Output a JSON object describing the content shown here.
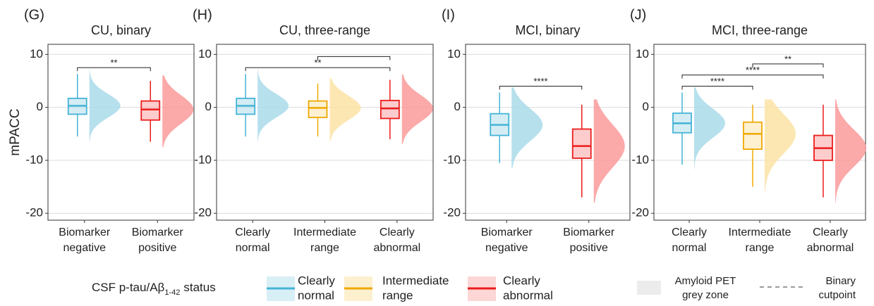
{
  "chart_data": [
    {
      "type": "box",
      "letter": "(G)",
      "title": "CU, binary",
      "y_label": "mPACC",
      "categories": [
        [
          "Biomarker",
          "negative"
        ],
        [
          "Biomarker",
          "positive"
        ]
      ],
      "colors": [
        "#45b4d6",
        "#ec1c1c"
      ],
      "fills": [
        "#aadbea",
        "#fb9a9a"
      ],
      "q1": [
        -1.3,
        -2.4
      ],
      "median": [
        0.3,
        -0.4
      ],
      "q3": [
        1.7,
        1.2
      ],
      "whisker_low": [
        -5.5,
        -6.5
      ],
      "whisker_high": [
        6.3,
        5.0
      ],
      "comparisons": [
        {
          "pair": [
            0,
            1
          ],
          "label": "**"
        }
      ],
      "ylim": [
        -21.3,
        11.9
      ],
      "yticks": [
        -20,
        -10,
        0,
        10
      ],
      "grid": true
    },
    {
      "type": "box",
      "letter": "(H)",
      "title": "CU, three-range",
      "categories": [
        [
          "Clearly",
          "normal"
        ],
        [
          "Intermediate",
          "range"
        ],
        [
          "Clearly",
          "abnormal"
        ]
      ],
      "colors": [
        "#45b4d6",
        "#f0a800",
        "#ec1c1c"
      ],
      "fills": [
        "#aadbea",
        "#fbe3a6",
        "#fb9a9a"
      ],
      "q1": [
        -1.3,
        -1.9,
        -2.1
      ],
      "median": [
        0.3,
        -0.1,
        -0.2
      ],
      "q3": [
        1.7,
        1.2,
        1.3
      ],
      "whisker_low": [
        -5.5,
        -5.5,
        -6.0
      ],
      "whisker_high": [
        6.3,
        4.5,
        5.2
      ],
      "comparisons": [
        {
          "pair": [
            0,
            2
          ],
          "label": "**"
        },
        {
          "pair": [
            1,
            2
          ]
        }
      ],
      "ylim": [
        -21.3,
        11.9
      ],
      "yticks": [
        -20,
        -10,
        0,
        10
      ],
      "grid": true
    },
    {
      "type": "box",
      "letter": "(I)",
      "title": "MCI, binary",
      "categories": [
        [
          "Biomarker",
          "negative"
        ],
        [
          "Biomarker",
          "positive"
        ]
      ],
      "colors": [
        "#45b4d6",
        "#ec1c1c"
      ],
      "fills": [
        "#aadbea",
        "#fb9a9a"
      ],
      "q1": [
        -5.3,
        -9.6
      ],
      "median": [
        -3.3,
        -7.3
      ],
      "q3": [
        -1.2,
        -4.1
      ],
      "whisker_low": [
        -10.5,
        -17.0
      ],
      "whisker_high": [
        2.8,
        0.5
      ],
      "comparisons": [
        {
          "pair": [
            0,
            1
          ],
          "label": "****"
        }
      ],
      "ylim": [
        -21.3,
        11.9
      ],
      "yticks": [
        -20,
        -10,
        0,
        10
      ],
      "grid": true
    },
    {
      "type": "box",
      "letter": "(J)",
      "title": "MCI, three-range",
      "categories": [
        [
          "Clearly",
          "normal"
        ],
        [
          "Intermediate",
          "range"
        ],
        [
          "Clearly",
          "abnormal"
        ]
      ],
      "colors": [
        "#45b4d6",
        "#f0a800",
        "#ec1c1c"
      ],
      "fills": [
        "#aadbea",
        "#fbe3a6",
        "#fb9a9a"
      ],
      "q1": [
        -4.8,
        -7.9,
        -10.0
      ],
      "median": [
        -3.0,
        -5.0,
        -7.7
      ],
      "q3": [
        -1.1,
        -2.8,
        -5.3
      ],
      "whisker_low": [
        -10.8,
        -15.0,
        -17.0
      ],
      "whisker_high": [
        2.8,
        0.5,
        0.5
      ],
      "comparisons": [
        {
          "pair": [
            0,
            1
          ],
          "label": "****"
        },
        {
          "pair": [
            0,
            2
          ],
          "label": "****"
        },
        {
          "pair": [
            1,
            2
          ],
          "label": "**"
        }
      ],
      "ylim": [
        -21.3,
        11.9
      ],
      "yticks": [
        -20,
        -10,
        0,
        10
      ],
      "grid": true
    }
  ],
  "legend": {
    "title": "CSF p-tau/Aβ",
    "title_subscript": "1-42",
    "title_suffix": "status",
    "items": [
      {
        "label": [
          "Clearly",
          "normal"
        ],
        "color": "#45b4d6",
        "fill": "#d9eff6"
      },
      {
        "label": [
          "Intermediate",
          "range"
        ],
        "color": "#f0a800",
        "fill": "#fdf0cf"
      },
      {
        "label": [
          "Clearly",
          "abnormal"
        ],
        "color": "#ec1c1c",
        "fill": "#fdd6d6"
      }
    ],
    "grey_zone": [
      "Amyloid PET",
      "grey zone"
    ],
    "cutpoint": [
      "Binary",
      "cutpoint"
    ]
  }
}
